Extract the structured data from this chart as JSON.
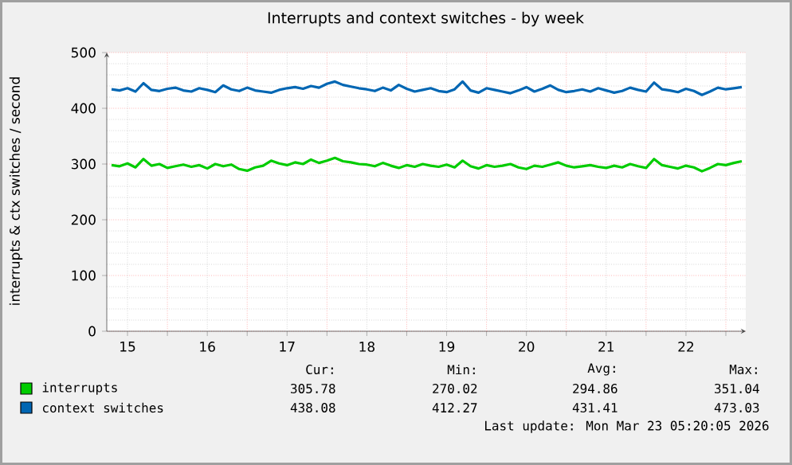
{
  "chart_data": {
    "type": "line",
    "title": "Interrupts and context switches - by week",
    "ylabel": "interrupts & ctx switches / second",
    "x": [
      15.3,
      15.4,
      15.5,
      15.6,
      15.7,
      15.8,
      15.9,
      16.0,
      16.1,
      16.2,
      16.3,
      16.4,
      16.5,
      16.6,
      16.7,
      16.8,
      16.9,
      17.0,
      17.1,
      17.2,
      17.3,
      17.4,
      17.5,
      17.6,
      17.7,
      17.8,
      17.9,
      18.0,
      18.1,
      18.2,
      18.3,
      18.4,
      18.5,
      18.6,
      18.7,
      18.8,
      18.9,
      19.0,
      19.1,
      19.2,
      19.3,
      19.4,
      19.5,
      19.6,
      19.7,
      19.8,
      19.9,
      20.0,
      20.1,
      20.2,
      20.3,
      20.4,
      20.5,
      20.6,
      20.7,
      20.8,
      20.9,
      21.0,
      21.1,
      21.2,
      21.3,
      21.4,
      21.5,
      21.6,
      21.7,
      21.8,
      21.9,
      22.0,
      22.1,
      22.2,
      22.3,
      22.4,
      22.5,
      22.6,
      22.7,
      22.8,
      22.9,
      23.0,
      23.1,
      23.2
    ],
    "series": [
      {
        "name": "interrupts",
        "color": "#00cc00",
        "values": [
          298,
          296,
          301,
          294,
          309,
          297,
          300,
          293,
          296,
          299,
          295,
          298,
          292,
          300,
          296,
          299,
          291,
          288,
          294,
          297,
          306,
          301,
          298,
          303,
          300,
          308,
          302,
          306,
          311,
          305,
          303,
          300,
          299,
          296,
          302,
          297,
          293,
          298,
          295,
          300,
          297,
          295,
          299,
          294,
          306,
          296,
          292,
          298,
          295,
          297,
          300,
          294,
          291,
          297,
          295,
          299,
          303,
          297,
          294,
          296,
          298,
          295,
          293,
          297,
          294,
          300,
          296,
          293,
          309,
          298,
          295,
          292,
          297,
          294,
          287,
          293,
          300,
          298,
          302,
          305
        ]
      },
      {
        "name": "context switches",
        "color": "#0066b3",
        "values": [
          434,
          432,
          436,
          430,
          445,
          433,
          431,
          435,
          437,
          432,
          430,
          436,
          433,
          429,
          441,
          434,
          431,
          437,
          432,
          430,
          428,
          433,
          436,
          438,
          435,
          440,
          437,
          444,
          448,
          442,
          439,
          436,
          434,
          431,
          437,
          432,
          442,
          435,
          430,
          433,
          436,
          431,
          429,
          434,
          448,
          432,
          428,
          436,
          433,
          430,
          427,
          432,
          438,
          430,
          435,
          441,
          433,
          429,
          431,
          434,
          430,
          436,
          432,
          428,
          431,
          437,
          433,
          430,
          446,
          434,
          432,
          429,
          435,
          431,
          424,
          430,
          437,
          434,
          436,
          438
        ]
      }
    ],
    "xlim": [
      15.24,
      23.25
    ],
    "xticks": [
      {
        "value": 15.5,
        "label": "15"
      },
      {
        "value": 16,
        "label": null
      },
      {
        "value": 16.5,
        "label": "16"
      },
      {
        "value": 17,
        "label": null
      },
      {
        "value": 17.5,
        "label": "17"
      },
      {
        "value": 18,
        "label": null
      },
      {
        "value": 18.5,
        "label": "18"
      },
      {
        "value": 19,
        "label": null
      },
      {
        "value": 19.5,
        "label": "19"
      },
      {
        "value": 20,
        "label": null
      },
      {
        "value": 20.5,
        "label": "20"
      },
      {
        "value": 21,
        "label": null
      },
      {
        "value": 21.5,
        "label": "21"
      },
      {
        "value": 22,
        "label": null
      },
      {
        "value": 22.5,
        "label": "22"
      },
      {
        "value": 23,
        "label": null
      }
    ],
    "ylim": [
      0,
      500
    ],
    "yticks": [
      0,
      100,
      200,
      300,
      400,
      500
    ],
    "grid": true,
    "legend": "bottom",
    "annotations": [
      "Cur:",
      "Min:",
      "Avg:",
      "Max:",
      "305.78",
      "270.02",
      "294.86",
      "351.04",
      "438.08",
      "412.27",
      "431.41",
      "473.03",
      "Last update:  Mon Mar 23 05:20:05 2026"
    ]
  }
}
